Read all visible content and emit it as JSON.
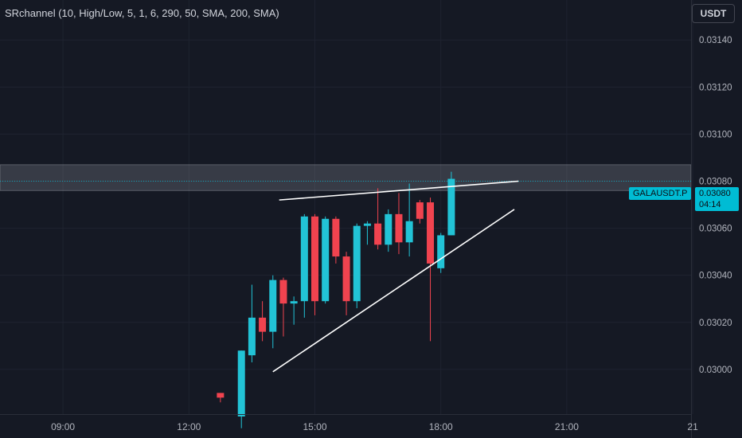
{
  "indicator": {
    "label": "SRchannel (10, High/Low, 5, 1, 6, 290, 50, SMA, 200, SMA)"
  },
  "currency_button": "USDT",
  "price_tag": {
    "symbol": "GALAUSDT.P",
    "price": "0.03080",
    "countdown": "04:14"
  },
  "colors": {
    "background": "#151924",
    "grid": "#1f2330",
    "up": "#22c3d6",
    "down": "#f0434f",
    "zone": "#b2b5be",
    "trendline": "#ffffff",
    "price_line": "#00bcd4"
  },
  "chart_data": {
    "type": "candlestick",
    "y_ticks": [
      "0.03000",
      "0.03020",
      "0.03040",
      "0.03060",
      "0.03080",
      "0.03100",
      "0.03120",
      "0.03140"
    ],
    "x_ticks": [
      "09:00",
      "12:00",
      "15:00",
      "18:00",
      "21:00",
      "21"
    ],
    "x_tick_hours": [
      9,
      12,
      15,
      18,
      21,
      24
    ],
    "ylim": [
      0.02981,
      0.03157
    ],
    "xlim_hours": [
      7.5,
      23.96
    ],
    "candles": [
      {
        "t": 12.75,
        "o": 0.0299,
        "h": 0.0299,
        "l": 0.02986,
        "c": 0.02988
      },
      {
        "t": 13.25,
        "o": 0.0298,
        "h": 0.03008,
        "l": 0.02975,
        "c": 0.03008
      },
      {
        "t": 13.5,
        "o": 0.03006,
        "h": 0.03036,
        "l": 0.03003,
        "c": 0.03022
      },
      {
        "t": 13.75,
        "o": 0.03022,
        "h": 0.03029,
        "l": 0.03012,
        "c": 0.03016
      },
      {
        "t": 14.0,
        "o": 0.03016,
        "h": 0.0304,
        "l": 0.03009,
        "c": 0.03038
      },
      {
        "t": 14.25,
        "o": 0.03038,
        "h": 0.03039,
        "l": 0.03014,
        "c": 0.03028
      },
      {
        "t": 14.5,
        "o": 0.03028,
        "h": 0.03031,
        "l": 0.03019,
        "c": 0.03029
      },
      {
        "t": 14.75,
        "o": 0.03029,
        "h": 0.03066,
        "l": 0.03022,
        "c": 0.03065
      },
      {
        "t": 15.0,
        "o": 0.03065,
        "h": 0.03066,
        "l": 0.03023,
        "c": 0.03029
      },
      {
        "t": 15.25,
        "o": 0.03029,
        "h": 0.03065,
        "l": 0.03028,
        "c": 0.03064
      },
      {
        "t": 15.5,
        "o": 0.03064,
        "h": 0.03065,
        "l": 0.03045,
        "c": 0.03048
      },
      {
        "t": 15.75,
        "o": 0.03048,
        "h": 0.0305,
        "l": 0.03023,
        "c": 0.03029
      },
      {
        "t": 16.0,
        "o": 0.03029,
        "h": 0.03062,
        "l": 0.03026,
        "c": 0.03061
      },
      {
        "t": 16.25,
        "o": 0.03061,
        "h": 0.03063,
        "l": 0.03053,
        "c": 0.03062
      },
      {
        "t": 16.5,
        "o": 0.03062,
        "h": 0.03077,
        "l": 0.03051,
        "c": 0.03053
      },
      {
        "t": 16.75,
        "o": 0.03053,
        "h": 0.03068,
        "l": 0.0305,
        "c": 0.03066
      },
      {
        "t": 17.0,
        "o": 0.03066,
        "h": 0.03075,
        "l": 0.03049,
        "c": 0.03054
      },
      {
        "t": 17.25,
        "o": 0.03054,
        "h": 0.03079,
        "l": 0.03048,
        "c": 0.03063
      },
      {
        "t": 17.5,
        "o": 0.03071,
        "h": 0.03072,
        "l": 0.03062,
        "c": 0.03064
      },
      {
        "t": 17.75,
        "o": 0.03071,
        "h": 0.03073,
        "l": 0.03012,
        "c": 0.03045
      },
      {
        "t": 18.0,
        "o": 0.03043,
        "h": 0.03058,
        "l": 0.03041,
        "c": 0.03057
      },
      {
        "t": 18.25,
        "o": 0.03057,
        "h": 0.03084,
        "l": 0.03057,
        "c": 0.03081
      }
    ],
    "zone": {
      "from": 0.03076,
      "to": 0.03087
    },
    "trendlines": [
      {
        "from": {
          "t": 14.15,
          "p": 0.03072
        },
        "to": {
          "t": 19.85,
          "p": 0.0308
        }
      },
      {
        "from": {
          "t": 14.0,
          "p": 0.02999
        },
        "to": {
          "t": 19.75,
          "p": 0.03068
        }
      }
    ],
    "last_price": 0.0308
  }
}
